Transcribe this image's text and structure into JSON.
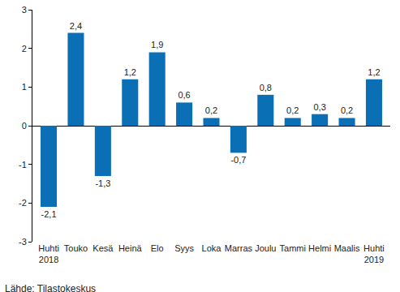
{
  "chart_data": {
    "type": "bar",
    "categories": [
      "Huhti 2018",
      "Touko",
      "Kesä",
      "Heinä",
      "Elo",
      "Syys",
      "Loka",
      "Marras",
      "Joulu",
      "Tammi",
      "Helmi",
      "Maalis",
      "Huhti 2019"
    ],
    "values": [
      -2.1,
      2.4,
      -1.3,
      1.2,
      1.9,
      0.6,
      0.2,
      -0.7,
      0.8,
      0.2,
      0.3,
      0.2,
      1.2
    ],
    "value_labels": [
      "-2,1",
      "2,4",
      "-1,3",
      "1,2",
      "1,9",
      "0,6",
      "0,2",
      "-0,7",
      "0,8",
      "0,2",
      "0,3",
      "0,2",
      "1,2"
    ],
    "data_labels": true,
    "color": "#0a6fb5",
    "ylim": [
      -3,
      3
    ],
    "yticks": [
      -3,
      -2,
      -1,
      0,
      1,
      2,
      3
    ],
    "grid": false,
    "annotations": [
      {
        "text": "Lähde: Tilastokeskus"
      }
    ]
  }
}
